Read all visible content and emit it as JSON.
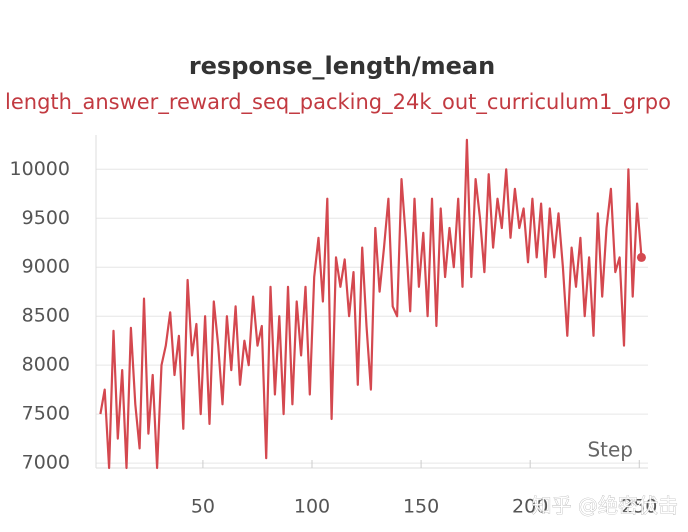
{
  "chart_data": {
    "type": "line",
    "title": "response_length/mean",
    "xlabel": "Step",
    "watermark": "知乎 @绝密伏击",
    "x": [
      3,
      5,
      7,
      9,
      11,
      13,
      15,
      17,
      19,
      21,
      23,
      25,
      27,
      29,
      31,
      33,
      35,
      37,
      39,
      41,
      43,
      45,
      47,
      49,
      51,
      53,
      55,
      57,
      59,
      61,
      63,
      65,
      67,
      69,
      71,
      73,
      75,
      77,
      79,
      81,
      83,
      85,
      87,
      89,
      91,
      93,
      95,
      97,
      99,
      101,
      103,
      105,
      107,
      109,
      111,
      113,
      115,
      117,
      119,
      121,
      123,
      125,
      127,
      129,
      131,
      133,
      135,
      137,
      139,
      141,
      143,
      145,
      147,
      149,
      151,
      153,
      155,
      157,
      159,
      161,
      163,
      165,
      167,
      169,
      171,
      173,
      175,
      177,
      179,
      181,
      183,
      185,
      187,
      189,
      191,
      193,
      195,
      197,
      199,
      201,
      203,
      205,
      207,
      209,
      211,
      213,
      215,
      217,
      219,
      221,
      223,
      225,
      227,
      229,
      231,
      233,
      235,
      237,
      239,
      241,
      243,
      245,
      247,
      249,
      251
    ],
    "series": [
      {
        "name": "length_answer_reward_seq_packing_24k_out_curriculum1_grpo",
        "color": "#d4484f",
        "values": [
          7500,
          7750,
          6950,
          8350,
          7250,
          7950,
          6950,
          8380,
          7600,
          7150,
          8680,
          7300,
          7900,
          6950,
          8000,
          8200,
          8540,
          7900,
          8300,
          7350,
          8870,
          8100,
          8420,
          7500,
          8500,
          7400,
          8650,
          8200,
          7600,
          8500,
          7950,
          8600,
          7800,
          8250,
          8000,
          8700,
          8200,
          8400,
          7050,
          8800,
          7700,
          8500,
          7500,
          8800,
          7600,
          8650,
          8100,
          8800,
          7700,
          8900,
          9300,
          8650,
          9700,
          7450,
          9100,
          8800,
          9080,
          8500,
          8950,
          7800,
          9200,
          8400,
          7750,
          9400,
          8750,
          9200,
          9700,
          8600,
          8500,
          9900,
          9300,
          8550,
          9700,
          8800,
          9350,
          8500,
          9700,
          8400,
          9600,
          8900,
          9400,
          9000,
          9700,
          8800,
          10300,
          8900,
          9900,
          9500,
          8950,
          9950,
          9200,
          9700,
          9400,
          10000,
          9300,
          9800,
          9400,
          9600,
          9050,
          9700,
          9100,
          9650,
          8900,
          9600,
          9100,
          9550,
          9000,
          8300,
          9200,
          8800,
          9300,
          8500,
          9100,
          8300,
          9550,
          8700,
          9400,
          9800,
          8950,
          9100,
          8200,
          10000,
          8700,
          9650,
          9100
        ]
      }
    ],
    "xlim": [
      1,
      254
    ],
    "ylim": [
      6950,
      10350
    ],
    "xticks": [
      50,
      100,
      150,
      200,
      250
    ],
    "yticks": [
      7000,
      7500,
      8000,
      8500,
      9000,
      9500,
      10000
    ],
    "grid": true
  }
}
